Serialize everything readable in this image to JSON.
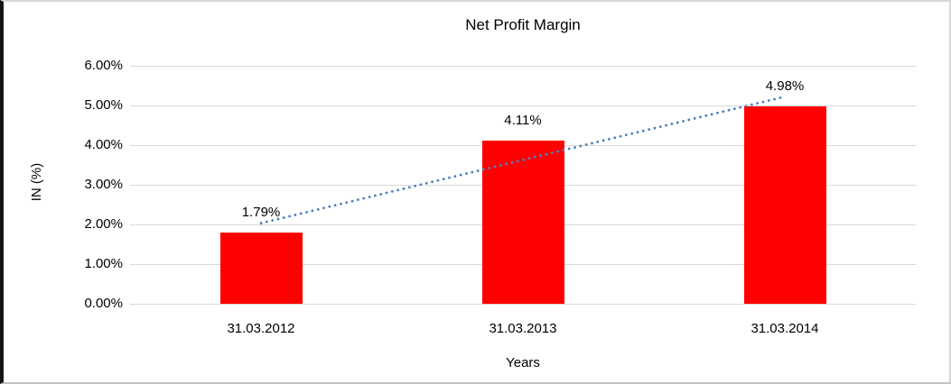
{
  "chart_data": {
    "type": "bar",
    "title": "Net Profit Margin",
    "xlabel": "Years",
    "ylabel": "IN (%)",
    "categories": [
      "31.03.2012",
      "31.03.2013",
      "31.03.2014"
    ],
    "values": [
      1.79,
      4.11,
      4.98
    ],
    "data_labels": [
      "1.79%",
      "4.11%",
      "4.98%"
    ],
    "ytick_labels": [
      "0.00%",
      "1.00%",
      "2.00%",
      "3.00%",
      "4.00%",
      "5.00%",
      "6.00%"
    ],
    "ytick_values": [
      0,
      1,
      2,
      3,
      4,
      5,
      6
    ],
    "ylim": [
      0,
      6
    ],
    "grid": true,
    "legend": "none",
    "bar_color": "#FF0000",
    "gridline_color": "#D9D9D9",
    "trendline": {
      "type": "linear",
      "style": "dotted",
      "color": "#4F81BD"
    }
  }
}
